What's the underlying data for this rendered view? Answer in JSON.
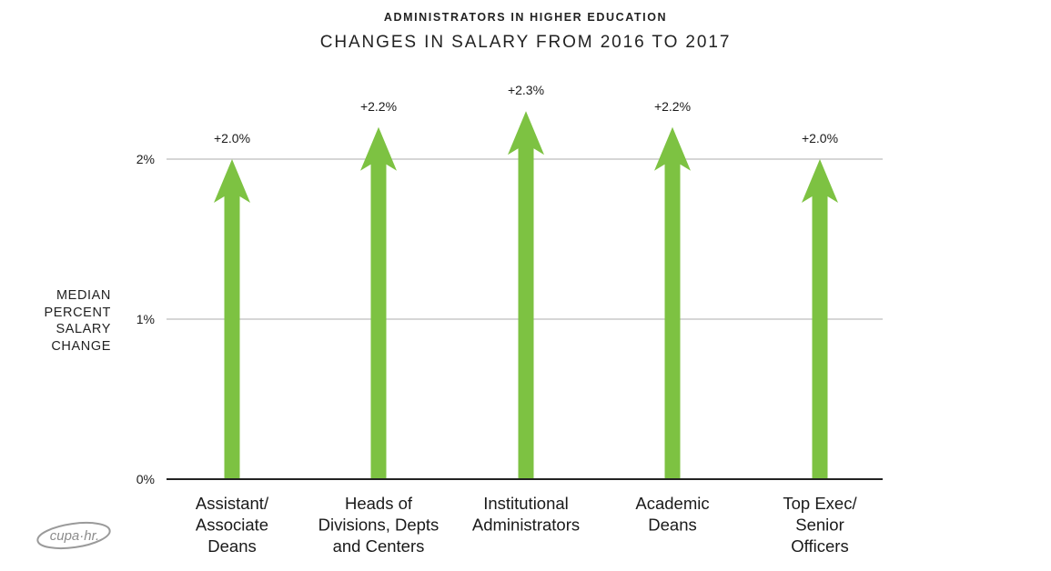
{
  "header": {
    "subtitle": "ADMINISTRATORS IN HIGHER EDUCATION",
    "title": "CHANGES IN SALARY FROM 2016 TO 2017"
  },
  "y_axis_label_lines": [
    "MEDIAN",
    "PERCENT",
    "SALARY",
    "CHANGE"
  ],
  "logo": {
    "text": "cupa·hr."
  },
  "colors": {
    "arrow": "#7dc242",
    "grid": "#c8c8c8",
    "axis": "#222222",
    "text": "#1a1a1a"
  },
  "chart_data": {
    "type": "bar",
    "mark": "arrow",
    "categories": [
      [
        "Assistant/",
        "Associate",
        "Deans"
      ],
      [
        "Heads of",
        "Divisions, Depts",
        "and Centers"
      ],
      [
        "Institutional",
        "Administrators"
      ],
      [
        "Academic",
        "Deans"
      ],
      [
        "Top Exec/",
        "Senior",
        "Officers"
      ]
    ],
    "values": [
      2.0,
      2.2,
      2.3,
      2.2,
      2.0
    ],
    "data_labels": [
      "+2.0%",
      "+2.2%",
      "+2.3%",
      "+2.2%",
      "+2.0%"
    ],
    "ylim": [
      0,
      2.3
    ],
    "yticks": [
      {
        "value": 0,
        "label": "0%"
      },
      {
        "value": 1,
        "label": "1%"
      },
      {
        "value": 2,
        "label": "2%"
      }
    ],
    "grid": true,
    "title": "CHANGES IN SALARY FROM 2016 TO 2017",
    "ylabel": "MEDIAN PERCENT SALARY CHANGE",
    "xlabel": ""
  }
}
